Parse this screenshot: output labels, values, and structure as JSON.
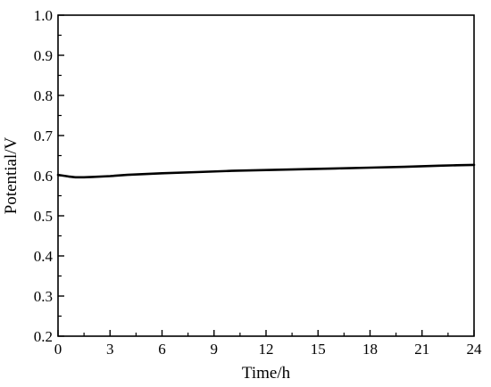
{
  "chart_data": {
    "type": "line",
    "title": "",
    "xlabel": "Time/h",
    "ylabel": "Potential/V",
    "xlim": [
      0,
      24
    ],
    "ylim": [
      0.2,
      1.0
    ],
    "xticks": [
      0,
      3,
      6,
      9,
      12,
      15,
      18,
      21,
      24
    ],
    "xtick_labels": [
      "0",
      "3",
      "6",
      "9",
      "12",
      "15",
      "18",
      "21",
      "24"
    ],
    "yticks": [
      0.2,
      0.3,
      0.4,
      0.5,
      0.6,
      0.7,
      0.8,
      0.9,
      1.0
    ],
    "ytick_labels": [
      "0.2",
      "0.3",
      "0.4",
      "0.5",
      "0.6",
      "0.7",
      "0.8",
      "0.9",
      "1.0"
    ],
    "grid": false,
    "legend": "none",
    "line_color": "#000000",
    "series": [
      {
        "x": [
          0,
          0.3,
          0.6,
          1.0,
          1.5,
          2.0,
          3,
          4,
          5,
          6,
          8,
          10,
          12,
          14,
          16,
          18,
          20,
          22,
          23,
          24
        ],
        "values": [
          0.602,
          0.6,
          0.598,
          0.596,
          0.596,
          0.597,
          0.599,
          0.602,
          0.604,
          0.606,
          0.609,
          0.612,
          0.614,
          0.616,
          0.618,
          0.62,
          0.622,
          0.625,
          0.626,
          0.627
        ]
      }
    ]
  }
}
